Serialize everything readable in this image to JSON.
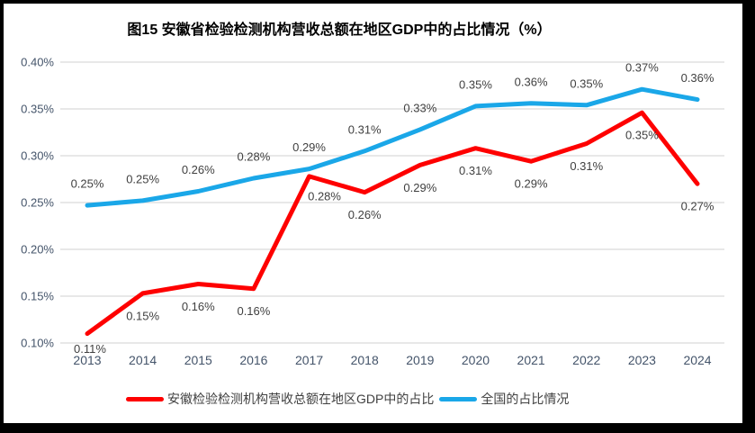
{
  "chart_data": {
    "type": "line",
    "title": "图15 安徽省检验检测机构营收总额在地区GDP中的占比情况（%）",
    "categories": [
      "2013",
      "2014",
      "2015",
      "2016",
      "2017",
      "2018",
      "2019",
      "2020",
      "2021",
      "2022",
      "2023",
      "2024"
    ],
    "series": [
      {
        "name": "安徽检验检测机构营收总额在地区GDP中的占比",
        "color": "#FE0000",
        "values": [
          0.11,
          0.15,
          0.16,
          0.16,
          0.28,
          0.26,
          0.29,
          0.31,
          0.29,
          0.31,
          0.35,
          0.27
        ],
        "labels": [
          "0.11%",
          "0.15%",
          "0.16%",
          "0.16%",
          "0.28%",
          "0.26%",
          "0.29%",
          "0.31%",
          "0.29%",
          "0.31%",
          "0.35%",
          "0.27%"
        ],
        "plot_values": [
          0.11,
          0.153,
          0.163,
          0.158,
          0.278,
          0.261,
          0.29,
          0.308,
          0.294,
          0.313,
          0.346,
          0.27
        ],
        "label_side": "below"
      },
      {
        "name": "全国的占比情况",
        "color": "#1AA7E8",
        "values": [
          0.25,
          0.25,
          0.26,
          0.28,
          0.29,
          0.31,
          0.33,
          0.35,
          0.36,
          0.35,
          0.37,
          0.36
        ],
        "labels": [
          "0.25%",
          "0.25%",
          "0.26%",
          "0.28%",
          "0.29%",
          "0.31%",
          "0.33%",
          "0.35%",
          "0.36%",
          "0.35%",
          "0.37%",
          "0.36%"
        ],
        "plot_values": [
          0.247,
          0.252,
          0.262,
          0.276,
          0.286,
          0.305,
          0.328,
          0.353,
          0.356,
          0.354,
          0.371,
          0.36
        ],
        "label_side": "above"
      }
    ],
    "y_axis": {
      "tick_labels": [
        "0.40%",
        "0.35%",
        "0.30%",
        "0.25%",
        "0.20%",
        "0.15%",
        "0.10%"
      ],
      "min": 0.1,
      "max": 0.4,
      "step": 0.05,
      "unit": "%"
    },
    "grid": true,
    "legend_position": "bottom",
    "colors": {
      "grid": "#D9D9D9",
      "axis_text": "#44546A",
      "data_label_text": "#404040",
      "frame": "#000000",
      "background": "#FFFFFF"
    }
  }
}
